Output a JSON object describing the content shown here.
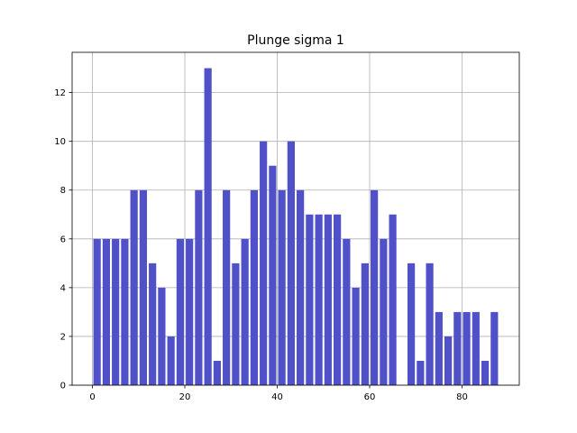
{
  "chart_data": {
    "type": "bar",
    "title": "Plunge sigma 1",
    "xlabel": "",
    "ylabel": "",
    "xlim": [
      -4.4,
      92.4
    ],
    "ylim": [
      0,
      13.65
    ],
    "x_ticks": [
      0,
      20,
      40,
      60,
      80
    ],
    "y_ticks": [
      0,
      2,
      4,
      6,
      8,
      10,
      12
    ],
    "grid": true,
    "bar_color": "#5050c8",
    "bin_width": 2,
    "bar_width_fraction": 0.8,
    "x": [
      1,
      3,
      5,
      7,
      9,
      11,
      13,
      15,
      17,
      19,
      21,
      23,
      25,
      27,
      29,
      31,
      33,
      35,
      37,
      39,
      41,
      43,
      45,
      47,
      49,
      51,
      53,
      55,
      57,
      59,
      61,
      63,
      65,
      67,
      69,
      71,
      73,
      75,
      77,
      79,
      81,
      83,
      85,
      87
    ],
    "values": [
      6,
      6,
      6,
      6,
      8,
      8,
      5,
      4,
      2,
      6,
      6,
      8,
      13,
      1,
      8,
      5,
      6,
      8,
      10,
      9,
      8,
      10,
      8,
      7,
      7,
      7,
      7,
      6,
      4,
      5,
      8,
      6,
      7,
      0,
      5,
      1,
      5,
      3,
      2,
      3,
      3,
      3,
      1,
      3
    ]
  }
}
